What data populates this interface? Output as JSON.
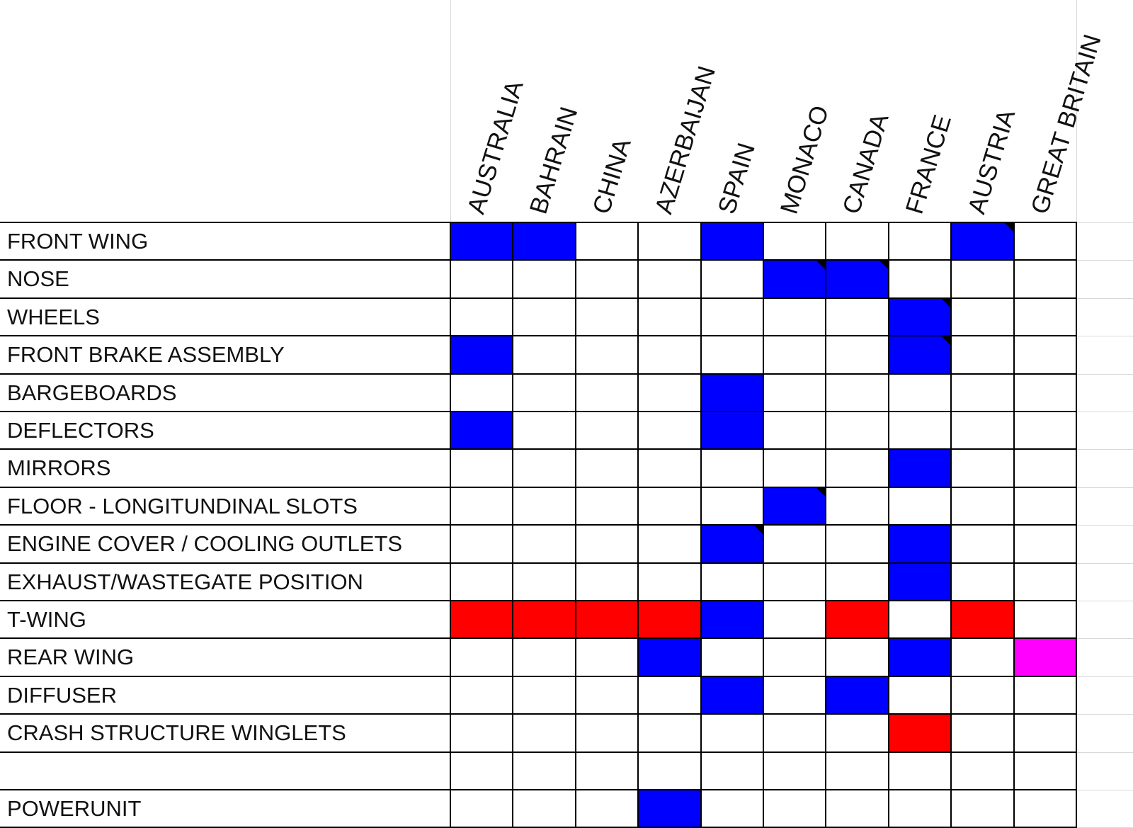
{
  "columns": [
    "AUSTRALIA",
    "BAHRAIN",
    "CHINA",
    "AZERBAIJAN",
    "SPAIN",
    "MONACO",
    "CANADA",
    "FRANCE",
    "AUSTRIA",
    "GREAT BRITAIN"
  ],
  "colors": {
    "blue": "#0000ff",
    "red": "#ff0000",
    "magenta": "#ff00ff",
    "white": "#ffffff",
    "border": "#000000",
    "grid": "#d9d9d9"
  },
  "rows": [
    {
      "label": "FRONT WING",
      "cells": [
        "blue",
        "blue",
        "",
        "",
        "blue",
        "",
        "",
        "",
        "blue",
        ""
      ],
      "notes": [
        8
      ]
    },
    {
      "label": "NOSE",
      "cells": [
        "",
        "",
        "",
        "",
        "",
        "blue",
        "blue",
        "",
        "",
        ""
      ],
      "notes": [
        5,
        6
      ]
    },
    {
      "label": "WHEELS",
      "cells": [
        "",
        "",
        "",
        "",
        "",
        "",
        "",
        "blue",
        "",
        ""
      ],
      "notes": [
        7
      ]
    },
    {
      "label": "FRONT BRAKE ASSEMBLY",
      "cells": [
        "blue",
        "",
        "",
        "",
        "",
        "",
        "",
        "blue",
        "",
        ""
      ],
      "notes": [
        7
      ]
    },
    {
      "label": "BARGEBOARDS",
      "cells": [
        "",
        "",
        "",
        "",
        "blue",
        "",
        "",
        "",
        "",
        ""
      ],
      "notes": []
    },
    {
      "label": "DEFLECTORS",
      "cells": [
        "blue",
        "",
        "",
        "",
        "blue",
        "",
        "",
        "",
        "",
        ""
      ],
      "notes": []
    },
    {
      "label": "MIRRORS",
      "cells": [
        "",
        "",
        "",
        "",
        "",
        "",
        "",
        "blue",
        "",
        ""
      ],
      "notes": []
    },
    {
      "label": "FLOOR - LONGITUNDINAL SLOTS",
      "cells": [
        "",
        "",
        "",
        "",
        "",
        "blue",
        "",
        "",
        "",
        ""
      ],
      "notes": [
        5
      ]
    },
    {
      "label": "ENGINE COVER / COOLING OUTLETS",
      "cells": [
        "",
        "",
        "",
        "",
        "blue",
        "",
        "",
        "blue",
        "",
        ""
      ],
      "notes": [
        4
      ]
    },
    {
      "label": "EXHAUST/WASTEGATE POSITION",
      "cells": [
        "",
        "",
        "",
        "",
        "",
        "",
        "",
        "blue",
        "",
        ""
      ],
      "notes": []
    },
    {
      "label": "T-WING",
      "cells": [
        "red",
        "red",
        "red",
        "red",
        "blue",
        "",
        "red",
        "",
        "red",
        ""
      ],
      "notes": []
    },
    {
      "label": "REAR WING",
      "cells": [
        "",
        "",
        "",
        "blue",
        "",
        "",
        "",
        "blue",
        "",
        "magenta"
      ],
      "notes": []
    },
    {
      "label": "DIFFUSER",
      "cells": [
        "",
        "",
        "",
        "",
        "blue",
        "",
        "blue",
        "",
        "",
        ""
      ],
      "notes": []
    },
    {
      "label": "CRASH STRUCTURE WINGLETS",
      "cells": [
        "",
        "",
        "",
        "",
        "",
        "",
        "",
        "red",
        "",
        ""
      ],
      "notes": []
    },
    {
      "label": "",
      "cells": [
        "",
        "",
        "",
        "",
        "",
        "",
        "",
        "",
        "",
        ""
      ],
      "notes": []
    },
    {
      "label": "POWERUNIT",
      "cells": [
        "",
        "",
        "",
        "blue",
        "",
        "",
        "",
        "",
        "",
        ""
      ],
      "notes": []
    }
  ]
}
